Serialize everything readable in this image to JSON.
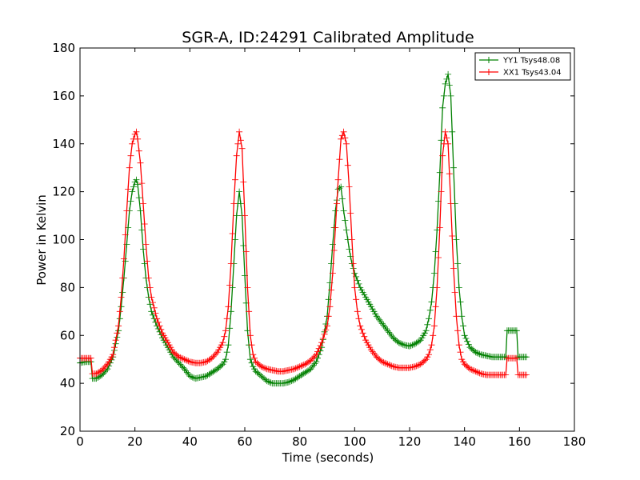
{
  "chart_data": {
    "type": "line",
    "title": "SGR-A, ID:24291 Calibrated Amplitude",
    "xlabel": "Time (seconds)",
    "ylabel": "Power in Kelvin",
    "xlim": [
      0,
      180
    ],
    "ylim": [
      20,
      180
    ],
    "xticks": [
      0,
      20,
      40,
      60,
      80,
      100,
      120,
      140,
      160,
      180
    ],
    "yticks": [
      20,
      40,
      60,
      80,
      100,
      120,
      140,
      160,
      180
    ],
    "grid": false,
    "legend": "top-right",
    "marker": "+",
    "series": [
      {
        "name": "YY1 Tsys48.08",
        "color": "#008000",
        "x": [
          0,
          2,
          4,
          4.5,
          6,
          8,
          10,
          12,
          14,
          15,
          16,
          17,
          18,
          19,
          20,
          20.5,
          21,
          22,
          23,
          24,
          25,
          26,
          28,
          30,
          32,
          34,
          36,
          38,
          40,
          42,
          44,
          46,
          48,
          50,
          52,
          53,
          54,
          55,
          56,
          57,
          58,
          59,
          60,
          61,
          62,
          63,
          64,
          66,
          68,
          70,
          72,
          74,
          76,
          78,
          80,
          82,
          84,
          86,
          88,
          90,
          91,
          92,
          93,
          94,
          95,
          96,
          97,
          98,
          99,
          100,
          101,
          102,
          104,
          106,
          108,
          110,
          112,
          114,
          116,
          118,
          120,
          122,
          124,
          126,
          127,
          128,
          129,
          130,
          131,
          132,
          133,
          134,
          135,
          136,
          137,
          138,
          139,
          140,
          142,
          144,
          146,
          148,
          150,
          152,
          154,
          155,
          155.5,
          156,
          158,
          159,
          159.5,
          160,
          162,
          163
        ],
        "values": [
          48.5,
          49,
          49,
          42,
          42,
          43.5,
          46,
          51,
          62,
          72,
          84,
          98,
          112,
          120,
          124,
          125,
          123,
          112,
          96,
          84,
          76,
          70,
          64,
          59,
          55,
          51,
          48.5,
          46,
          43,
          42,
          42.5,
          43,
          44.5,
          46,
          48,
          50,
          56,
          70,
          90,
          110,
          120,
          110,
          85,
          62,
          50,
          47,
          45,
          43,
          41,
          40,
          40,
          40,
          40.5,
          41.5,
          43,
          44.5,
          46,
          49,
          55,
          68,
          82,
          98,
          112,
          121,
          122,
          112,
          104,
          96,
          90,
          86,
          83,
          80,
          76,
          72,
          68,
          65,
          62,
          59,
          57,
          56,
          55.5,
          56.5,
          58,
          62,
          67,
          74,
          86,
          104,
          128,
          155,
          165,
          169,
          160,
          130,
          100,
          80,
          68,
          60,
          55,
          53,
          52,
          51.5,
          51,
          51,
          51,
          51,
          62,
          62,
          62,
          62,
          51,
          51,
          51,
          51
        ]
      },
      {
        "name": "XX1 Tsys43.04",
        "color": "#ff0000",
        "x": [
          0,
          2,
          4,
          4.5,
          6,
          8,
          10,
          12,
          14,
          15,
          16,
          17,
          18,
          19,
          20,
          20.5,
          21,
          22,
          23,
          24,
          25,
          26,
          28,
          30,
          32,
          34,
          36,
          38,
          40,
          42,
          44,
          46,
          48,
          50,
          52,
          53,
          54,
          55,
          56,
          57,
          58,
          59,
          60,
          61,
          62,
          63,
          64,
          66,
          68,
          70,
          72,
          74,
          76,
          78,
          80,
          82,
          84,
          86,
          88,
          90,
          91,
          92,
          93,
          94,
          95,
          96,
          97,
          98,
          99,
          100,
          101,
          102,
          104,
          106,
          108,
          110,
          112,
          114,
          116,
          118,
          120,
          122,
          124,
          126,
          127,
          128,
          129,
          130,
          131,
          132,
          133,
          134,
          135,
          136,
          137,
          138,
          139,
          140,
          142,
          144,
          146,
          148,
          150,
          152,
          154,
          155,
          155.5,
          156,
          158,
          159,
          159.5,
          160,
          162,
          163
        ],
        "values": [
          50.5,
          50.5,
          50.5,
          44,
          44,
          45.5,
          48,
          52,
          64,
          76,
          92,
          112,
          130,
          140,
          144,
          145,
          142,
          132,
          115,
          98,
          84,
          76,
          67,
          61,
          57,
          53,
          51,
          50,
          49,
          48.5,
          48.5,
          49,
          50.5,
          53,
          57,
          62,
          72,
          90,
          115,
          135,
          145,
          138,
          110,
          80,
          60,
          52,
          49,
          47,
          46,
          45.5,
          45,
          45,
          45.5,
          46,
          47,
          48,
          49.5,
          52,
          57,
          64,
          72,
          86,
          105,
          125,
          142,
          145,
          140,
          122,
          100,
          80,
          70,
          64,
          58,
          54,
          51,
          49,
          48,
          47,
          46.5,
          46.5,
          46.5,
          47,
          48,
          50,
          52,
          56,
          64,
          80,
          105,
          135,
          145,
          140,
          115,
          88,
          68,
          56,
          50,
          48,
          46,
          45,
          44,
          43.5,
          43.5,
          43.5,
          43.5,
          43.5,
          50.5,
          50.5,
          50.5,
          50.5,
          43.5,
          43.5,
          43.5,
          43.5
        ]
      }
    ]
  }
}
